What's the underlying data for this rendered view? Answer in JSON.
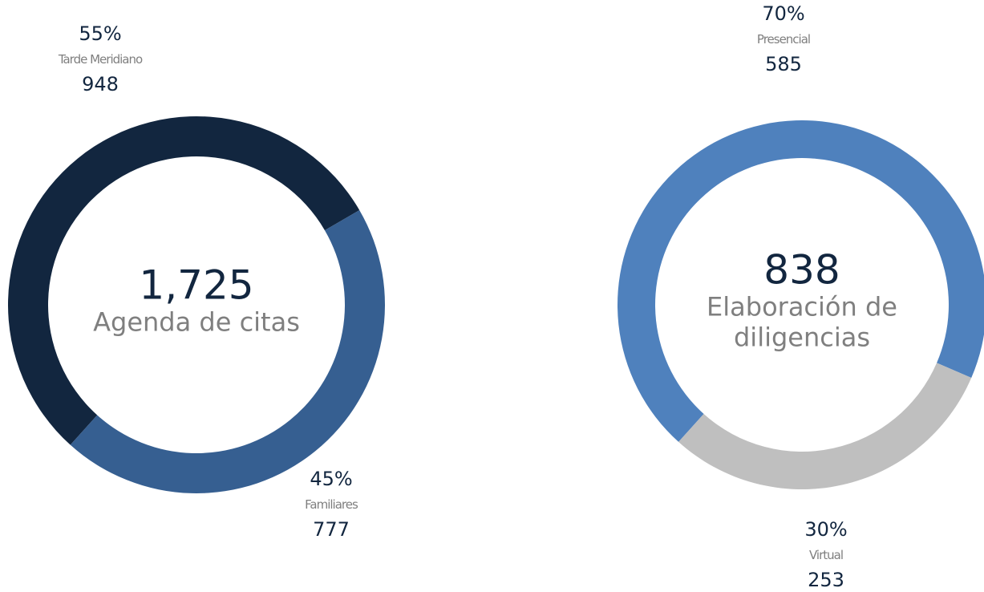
{
  "chart_data": [
    {
      "type": "donut",
      "total": "1,725",
      "center_label": "Agenda de citas",
      "categories": [
        "Tarde Meridiano",
        "Familiares"
      ],
      "values": [
        948,
        777
      ],
      "shares": [
        "55%",
        "45%"
      ],
      "colors": [
        "#12263f",
        "#365f91"
      ]
    },
    {
      "type": "donut",
      "total": "838",
      "center_label": "Elaboración de diligencias",
      "categories": [
        "Presencial",
        "Virtual"
      ],
      "values": [
        585,
        253
      ],
      "shares": [
        "70%",
        "30%"
      ],
      "colors": [
        "#4f81bd",
        "#bfbfbf"
      ]
    }
  ]
}
